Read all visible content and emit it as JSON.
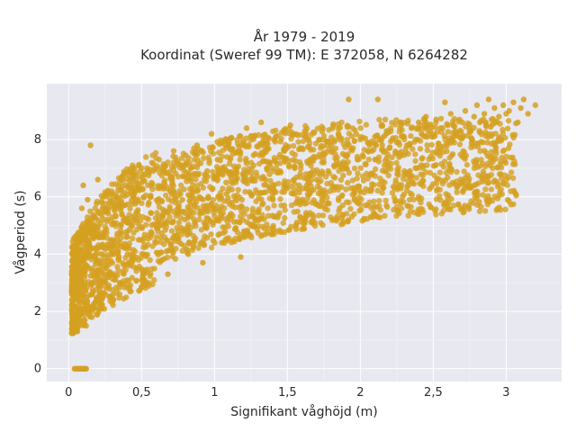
{
  "chart_data": {
    "type": "scatter",
    "title_line1": "År 1979 - 2019",
    "title_line2": "Koordinat (Sweref 99 TM): E 372058, N 6264282",
    "xlabel": "Signifikant våghöjd (m)",
    "ylabel": "Vågperiod (s)",
    "xlim": [
      -0.15,
      3.38
    ],
    "ylim": [
      -0.45,
      9.95
    ],
    "x_ticks": [
      {
        "value": 0,
        "label": "0"
      },
      {
        "value": 0.5,
        "label": "0,5"
      },
      {
        "value": 1,
        "label": "1"
      },
      {
        "value": 1.5,
        "label": "1,5"
      },
      {
        "value": 2,
        "label": "2"
      },
      {
        "value": 2.5,
        "label": "2,5"
      },
      {
        "value": 3,
        "label": "3"
      }
    ],
    "y_ticks": [
      {
        "value": 0,
        "label": "0"
      },
      {
        "value": 2,
        "label": "2"
      },
      {
        "value": 4,
        "label": "4"
      },
      {
        "value": 6,
        "label": "6"
      },
      {
        "value": 8,
        "label": "8"
      }
    ],
    "grid": true,
    "series": [
      {
        "color": "#D4A020",
        "points": [
          [
            0.02,
            1.25
          ],
          [
            0.03,
            1.6
          ],
          [
            0.04,
            2.6
          ],
          [
            0.05,
            3.2
          ],
          [
            0.06,
            1.3
          ],
          [
            0.07,
            2.0
          ],
          [
            0.08,
            4.1
          ],
          [
            0.09,
            5.6
          ],
          [
            0.1,
            6.4
          ],
          [
            0.11,
            3.0
          ],
          [
            0.12,
            1.5
          ],
          [
            0.13,
            5.9
          ],
          [
            0.15,
            7.8
          ],
          [
            0.16,
            4.9
          ],
          [
            0.18,
            2.3
          ],
          [
            0.2,
            6.6
          ],
          [
            0.22,
            3.4
          ],
          [
            0.25,
            5.5
          ],
          [
            0.28,
            2.5
          ],
          [
            0.3,
            6.1
          ],
          [
            0.32,
            4.2
          ],
          [
            0.35,
            3.0
          ],
          [
            0.38,
            6.8
          ],
          [
            0.4,
            5.1
          ],
          [
            0.42,
            3.6
          ],
          [
            0.45,
            6.3
          ],
          [
            0.48,
            4.5
          ],
          [
            0.5,
            7.0
          ],
          [
            0.52,
            3.1
          ],
          [
            0.55,
            5.8
          ],
          [
            0.58,
            6.9
          ],
          [
            0.6,
            4.4
          ],
          [
            0.62,
            7.3
          ],
          [
            0.65,
            5.0
          ],
          [
            0.68,
            3.3
          ],
          [
            0.7,
            6.7
          ],
          [
            0.72,
            7.6
          ],
          [
            0.75,
            4.8
          ],
          [
            0.78,
            5.9
          ],
          [
            0.8,
            7.1
          ],
          [
            0.82,
            4.0
          ],
          [
            0.85,
            6.2
          ],
          [
            0.88,
            7.8
          ],
          [
            0.9,
            5.4
          ],
          [
            0.92,
            3.7
          ],
          [
            0.95,
            6.9
          ],
          [
            0.98,
            8.2
          ],
          [
            1.0,
            5.6
          ],
          [
            1.02,
            7.3
          ],
          [
            1.05,
            4.4
          ],
          [
            1.08,
            6.5
          ],
          [
            1.1,
            8.0
          ],
          [
            1.12,
            5.8
          ],
          [
            1.15,
            7.0
          ],
          [
            1.18,
            3.9
          ],
          [
            1.2,
            6.7
          ],
          [
            1.22,
            8.4
          ],
          [
            1.25,
            6.1
          ],
          [
            1.28,
            7.5
          ],
          [
            1.3,
            5.5
          ],
          [
            1.32,
            8.6
          ],
          [
            1.35,
            6.6
          ],
          [
            1.38,
            7.2
          ],
          [
            1.4,
            5.9
          ],
          [
            1.42,
            8.1
          ],
          [
            1.45,
            6.9
          ],
          [
            1.48,
            7.6
          ],
          [
            1.5,
            6.3
          ],
          [
            1.52,
            8.5
          ],
          [
            1.55,
            7.0
          ],
          [
            1.58,
            6.4
          ],
          [
            1.6,
            7.7
          ],
          [
            1.62,
            8.3
          ],
          [
            1.65,
            6.8
          ],
          [
            1.68,
            7.4
          ],
          [
            1.7,
            6.6
          ],
          [
            1.72,
            8.0
          ],
          [
            1.75,
            7.2
          ],
          [
            1.78,
            6.9
          ],
          [
            1.8,
            7.8
          ],
          [
            1.82,
            7.1
          ],
          [
            1.85,
            8.2
          ],
          [
            1.88,
            7.5
          ],
          [
            1.9,
            7.0
          ],
          [
            1.92,
            9.4
          ],
          [
            1.95,
            7.7
          ],
          [
            1.98,
            7.3
          ],
          [
            2.0,
            8.0
          ],
          [
            2.02,
            7.4
          ],
          [
            2.05,
            7.9
          ],
          [
            2.08,
            7.6
          ],
          [
            2.1,
            8.1
          ],
          [
            2.12,
            9.4
          ],
          [
            2.15,
            7.8
          ],
          [
            2.18,
            8.3
          ],
          [
            2.2,
            7.7
          ],
          [
            2.22,
            8.0
          ],
          [
            2.25,
            7.9
          ],
          [
            2.28,
            8.5
          ],
          [
            2.3,
            8.1
          ],
          [
            2.32,
            7.8
          ],
          [
            2.35,
            8.4
          ],
          [
            2.38,
            8.0
          ],
          [
            2.4,
            8.6
          ],
          [
            2.42,
            8.2
          ],
          [
            2.45,
            8.8
          ],
          [
            2.48,
            8.3
          ],
          [
            2.5,
            8.1
          ],
          [
            2.52,
            8.7
          ],
          [
            2.55,
            8.4
          ],
          [
            2.58,
            9.3
          ],
          [
            2.6,
            8.5
          ],
          [
            2.62,
            8.9
          ],
          [
            2.65,
            8.3
          ],
          [
            2.68,
            8.7
          ],
          [
            2.7,
            8.6
          ],
          [
            2.72,
            9.0
          ],
          [
            2.75,
            8.4
          ],
          [
            2.78,
            8.8
          ],
          [
            2.8,
            9.2
          ],
          [
            2.82,
            8.6
          ],
          [
            2.85,
            8.9
          ],
          [
            2.88,
            9.4
          ],
          [
            2.9,
            8.7
          ],
          [
            2.92,
            9.1
          ],
          [
            2.95,
            8.8
          ],
          [
            2.98,
            9.2
          ],
          [
            3.0,
            8.9
          ],
          [
            3.02,
            9.0
          ],
          [
            3.05,
            9.3
          ],
          [
            3.08,
            8.6
          ],
          [
            3.1,
            9.1
          ],
          [
            3.12,
            9.4
          ],
          [
            3.15,
            8.9
          ],
          [
            3.2,
            9.2
          ]
        ]
      }
    ],
    "zero_period_points": [
      0.04,
      0.05,
      0.06,
      0.07,
      0.08,
      0.09,
      0.1,
      0.11,
      0.12
    ]
  }
}
